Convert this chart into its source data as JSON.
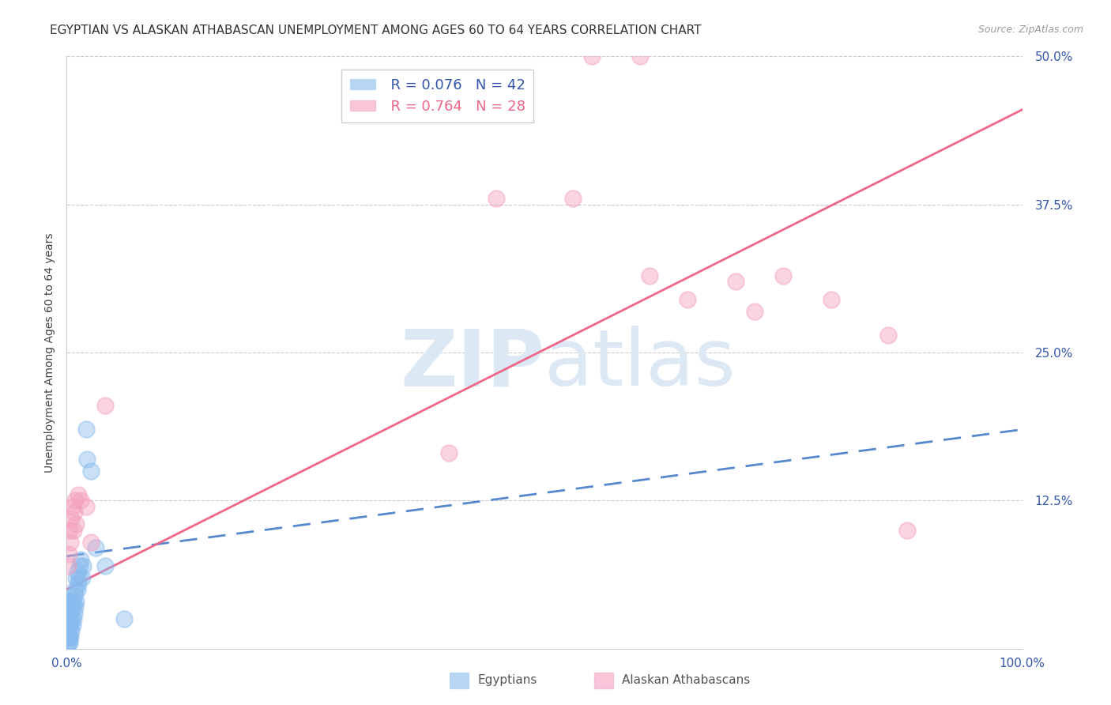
{
  "title": "EGYPTIAN VS ALASKAN ATHABASCAN UNEMPLOYMENT AMONG AGES 60 TO 64 YEARS CORRELATION CHART",
  "source": "Source: ZipAtlas.com",
  "ylabel": "Unemployment Among Ages 60 to 64 years",
  "xlim": [
    0,
    1.0
  ],
  "ylim": [
    0,
    0.5
  ],
  "xticks": [
    0.0,
    0.2,
    0.4,
    0.6,
    0.8,
    1.0
  ],
  "xticklabels": [
    "0.0%",
    "",
    "",
    "",
    "",
    "100.0%"
  ],
  "yticks": [
    0.0,
    0.125,
    0.25,
    0.375,
    0.5
  ],
  "yticklabels": [
    "",
    "12.5%",
    "25.0%",
    "37.5%",
    "50.0%"
  ],
  "legend_r1": "R = 0.076",
  "legend_n1": "N = 42",
  "legend_r2": "R = 0.764",
  "legend_n2": "N = 28",
  "blue_color": "#88bbee",
  "pink_color": "#f4a0be",
  "trend_blue_color": "#5588cc",
  "trend_pink_color": "#ee6688",
  "axis_color": "#3355aa",
  "watermark_color": "#dde8f5",
  "title_fontsize": 11,
  "axis_label_fontsize": 10,
  "tick_fontsize": 11,
  "egyptians_x": [
    0.001,
    0.001,
    0.001,
    0.002,
    0.002,
    0.002,
    0.002,
    0.002,
    0.003,
    0.003,
    0.003,
    0.003,
    0.004,
    0.004,
    0.004,
    0.005,
    0.005,
    0.005,
    0.006,
    0.006,
    0.007,
    0.007,
    0.008,
    0.008,
    0.009,
    0.009,
    0.01,
    0.01,
    0.011,
    0.011,
    0.012,
    0.013,
    0.014,
    0.015,
    0.016,
    0.017,
    0.02,
    0.021,
    0.025,
    0.03,
    0.04,
    0.06
  ],
  "egyptians_y": [
    0.005,
    0.01,
    0.015,
    0.005,
    0.01,
    0.02,
    0.03,
    0.04,
    0.005,
    0.01,
    0.02,
    0.04,
    0.01,
    0.02,
    0.03,
    0.015,
    0.025,
    0.04,
    0.02,
    0.035,
    0.025,
    0.04,
    0.03,
    0.045,
    0.035,
    0.05,
    0.04,
    0.06,
    0.05,
    0.065,
    0.055,
    0.06,
    0.07,
    0.075,
    0.06,
    0.07,
    0.185,
    0.16,
    0.15,
    0.085,
    0.07,
    0.025
  ],
  "athabascan_x": [
    0.001,
    0.002,
    0.003,
    0.004,
    0.005,
    0.006,
    0.007,
    0.008,
    0.009,
    0.01,
    0.012,
    0.015,
    0.02,
    0.025,
    0.04,
    0.4,
    0.45,
    0.53,
    0.55,
    0.6,
    0.61,
    0.65,
    0.7,
    0.72,
    0.75,
    0.8,
    0.86,
    0.88
  ],
  "athabascan_y": [
    0.07,
    0.08,
    0.1,
    0.09,
    0.11,
    0.12,
    0.1,
    0.115,
    0.125,
    0.105,
    0.13,
    0.125,
    0.12,
    0.09,
    0.205,
    0.165,
    0.38,
    0.38,
    0.5,
    0.5,
    0.315,
    0.295,
    0.31,
    0.285,
    0.315,
    0.295,
    0.265,
    0.1
  ],
  "pink_trendline_x0": 0.0,
  "pink_trendline_y0": 0.05,
  "pink_trendline_x1": 1.0,
  "pink_trendline_y1": 0.455,
  "blue_trendline_x0": 0.0,
  "blue_trendline_y0": 0.078,
  "blue_trendline_x1": 1.0,
  "blue_trendline_y1": 0.185
}
